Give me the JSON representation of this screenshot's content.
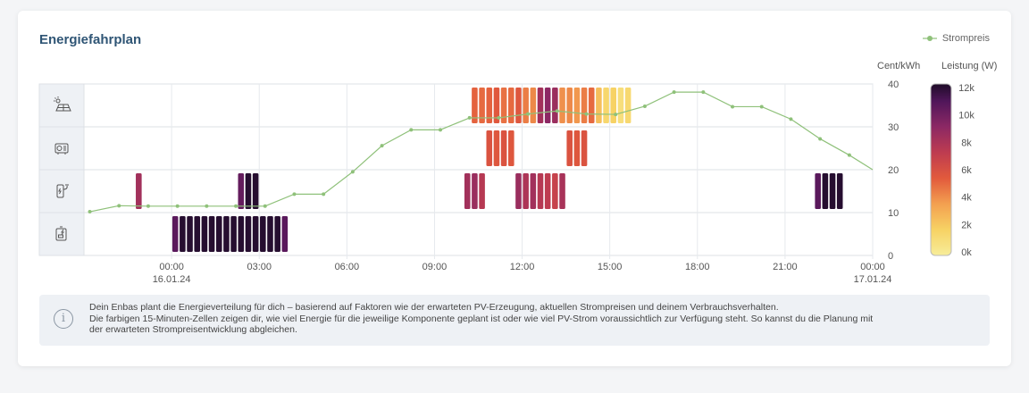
{
  "card": {
    "title": "Energiefahrplan",
    "legend_label": "Strompreis",
    "legend_color": "#8fc17a"
  },
  "axes": {
    "y_right_unit": "Cent/kWh",
    "colorbar_unit": "Leistung (W)",
    "y_ticks": [
      "40",
      "30",
      "20",
      "10",
      "0"
    ],
    "x_ticks": [
      {
        "time": "00:00",
        "date": "16.01.24"
      },
      {
        "time": "03:00",
        "date": ""
      },
      {
        "time": "06:00",
        "date": ""
      },
      {
        "time": "09:00",
        "date": ""
      },
      {
        "time": "12:00",
        "date": ""
      },
      {
        "time": "15:00",
        "date": ""
      },
      {
        "time": "18:00",
        "date": ""
      },
      {
        "time": "21:00",
        "date": ""
      },
      {
        "time": "00:00",
        "date": "17.01.24"
      }
    ],
    "colorbar_ticks": [
      "12k",
      "10k",
      "8k",
      "6k",
      "4k",
      "2k",
      "0k"
    ]
  },
  "rows": [
    {
      "icon": "solar-panel-icon"
    },
    {
      "icon": "inverter-icon"
    },
    {
      "icon": "wallbox-icon"
    },
    {
      "icon": "heat-pump-icon"
    }
  ],
  "info": {
    "icon": "info-icon",
    "line1": "Dein Enbas plant die Energieverteilung für dich – basierend auf Faktoren wie der erwarteten PV-Erzeugung, aktuellen Strompreisen und deinem Verbrauchsverhalten.",
    "line2": "Die farbigen 15-Minuten-Zellen zeigen dir, wie viel Energie für die jeweilige Komponente geplant ist oder wie viel PV-Strom voraussichtlich zur Verfügung steht. So kannst du die Planung mit",
    "line3": "der erwarteten Strompreisentwicklung abgleichen."
  },
  "chart_data": {
    "type": "heatmap",
    "x_range_hours": [
      -3,
      24
    ],
    "price_ylim": [
      0,
      40
    ],
    "power_range_w": [
      0,
      12000
    ],
    "price_series": {
      "name": "Strompreis",
      "x_hours": [
        -2.8,
        -1.8,
        -0.8,
        0.2,
        1.2,
        2.2,
        3.2,
        4.2,
        5.2,
        6.2,
        7.2,
        8.2,
        9.2,
        10.2,
        11.2,
        12.2,
        13.2,
        14.2,
        15.2,
        16.2,
        17.2,
        18.2,
        19.2,
        20.2,
        21.2,
        22.2,
        23.2,
        24
      ],
      "values": [
        10.2,
        11.6,
        11.5,
        11.5,
        11.5,
        11.5,
        11.5,
        14.3,
        14.3,
        19.5,
        25.6,
        29.3,
        29.3,
        32.1,
        32.1,
        33,
        33.7,
        33,
        32.9,
        34.8,
        38.1,
        38.1,
        34.7,
        34.7,
        31.8,
        27.2,
        23.4,
        20
      ]
    },
    "cells": [
      {
        "row": 0,
        "start": 10.25,
        "powers": [
          5200,
          5000,
          5200,
          5500,
          4800,
          5000,
          5600,
          4500,
          4200,
          8200,
          9000,
          8500,
          4000,
          4200,
          3800,
          4500,
          5000,
          2500,
          1500,
          1800,
          1000,
          1400
        ]
      },
      {
        "row": 1,
        "start": 10.75,
        "powers": [
          5800,
          5600,
          5800,
          5600
        ]
      },
      {
        "row": 1,
        "start": 13.5,
        "powers": [
          5800,
          5600,
          5800
        ]
      },
      {
        "row": 2,
        "start": -1.25,
        "powers": [
          8200
        ]
      },
      {
        "row": 2,
        "start": 2.25,
        "powers": [
          10200,
          11800,
          11800
        ]
      },
      {
        "row": 2,
        "start": 10.0,
        "powers": [
          8200,
          8500,
          7500
        ]
      },
      {
        "row": 2,
        "start": 11.75,
        "powers": [
          8500,
          7800,
          8200,
          7500,
          7200,
          6800
        ]
      },
      {
        "row": 2,
        "start": 13.25,
        "powers": [
          8000
        ]
      },
      {
        "row": 2,
        "start": 22.0,
        "powers": [
          10500,
          11800,
          11800,
          11800
        ]
      },
      {
        "row": 3,
        "start": 0.0,
        "powers": [
          10500,
          11800,
          11800,
          11800,
          11800,
          11800,
          11800,
          11800,
          11800,
          11800,
          11800,
          11800,
          11800,
          11800,
          11800,
          10500
        ]
      }
    ]
  }
}
